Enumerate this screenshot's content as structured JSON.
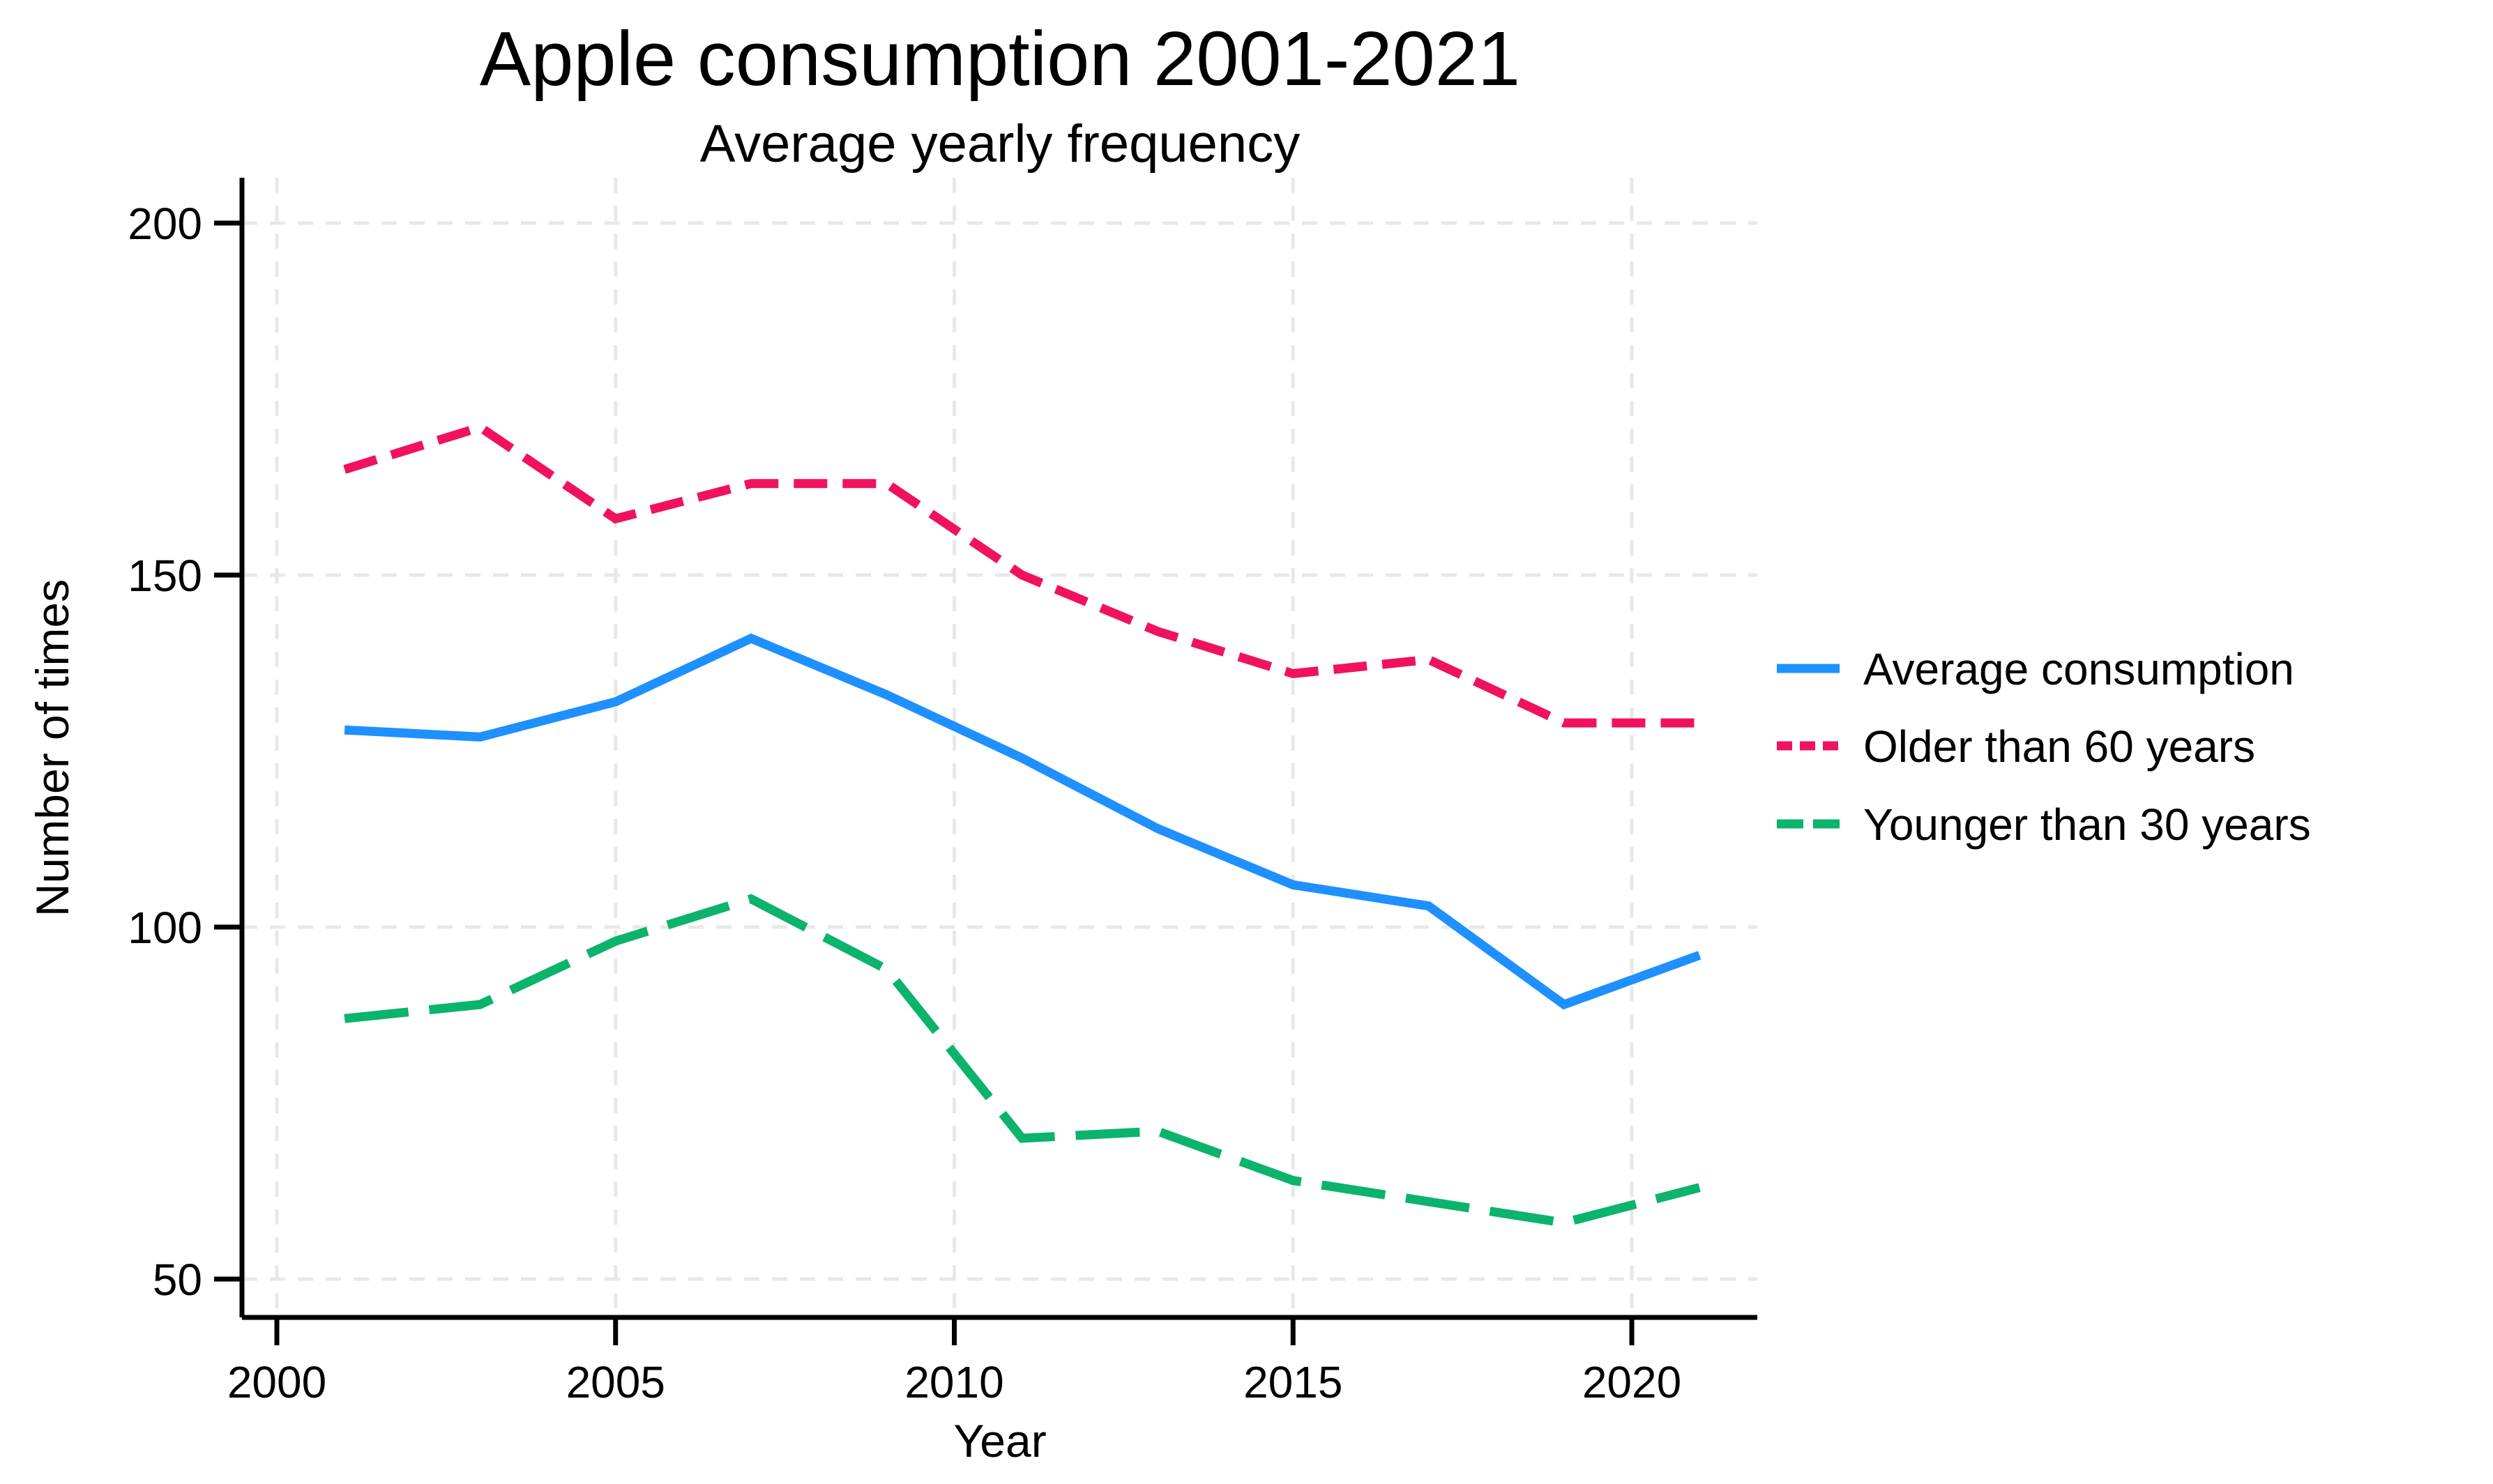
{
  "title": "Apple consumption 2001-2021",
  "subtitle": "Average yearly frequency",
  "x_axis": {
    "label": "Year",
    "ticks": [
      2000,
      2005,
      2010,
      2015,
      2020
    ]
  },
  "y_axis": {
    "label": "Number of times",
    "ticks": [
      200,
      150,
      100,
      50
    ]
  },
  "legend": {
    "position": "right",
    "entries": [
      {
        "label": "Average consumption",
        "color": "#1E90FF",
        "dash": "solid"
      },
      {
        "label": "Older than 60 years",
        "color": "#F0135C",
        "dash": "dashed-short"
      },
      {
        "label": "Younger than 30 years",
        "color": "#0CB36D",
        "dash": "dashed-long"
      }
    ]
  },
  "colors": {
    "grid": "#E8E8E8",
    "axis": "#000000",
    "background": "#FFFFFF"
  },
  "chart_data": {
    "type": "line",
    "title": "Apple consumption 2001-2021",
    "subtitle": "Average yearly frequency",
    "xlabel": "Year",
    "ylabel": "Number of times",
    "x": [
      2001,
      2003,
      2005,
      2007,
      2009,
      2011,
      2013,
      2015,
      2017,
      2019,
      2021
    ],
    "series": [
      {
        "name": "Average consumption",
        "color": "#1E90FF",
        "dash": "solid",
        "values": [
          128,
          127,
          132,
          141,
          133,
          124,
          114,
          106,
          103,
          89,
          96
        ]
      },
      {
        "name": "Older than 60 years",
        "color": "#F0135C",
        "dash": "dashed-short",
        "values": [
          165,
          171,
          158,
          163,
          163,
          150,
          142,
          136,
          138,
          129,
          129
        ]
      },
      {
        "name": "Younger than 30 years",
        "color": "#0CB36D",
        "dash": "dashed-long",
        "values": [
          87,
          89,
          98,
          104,
          94,
          70,
          71,
          64,
          61,
          58,
          63
        ]
      }
    ],
    "xlim": [
      2000,
      2021.8
    ],
    "ylim": [
      50,
      200
    ],
    "grid": true,
    "legend_position": "right"
  }
}
